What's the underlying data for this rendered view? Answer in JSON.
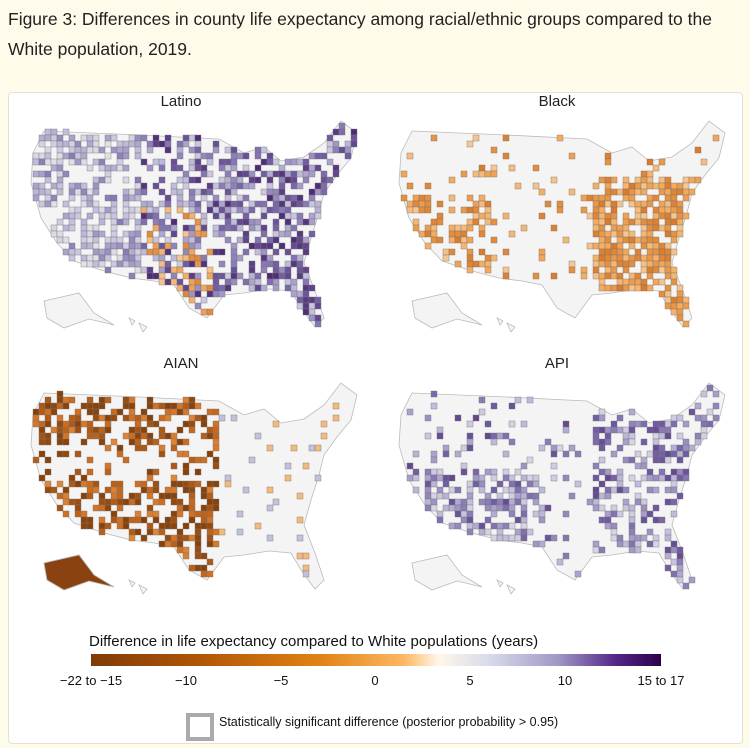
{
  "title": "Figure 3: Differences in county life expectancy among racial/ethnic groups compared to the White population, 2019.",
  "chart_data": {
    "type": "heatmap",
    "title": "Differences in county life expectancy among racial/ethnic groups compared to the White population, 2019",
    "panels": [
      {
        "name": "Latino",
        "pattern": "mostly positive (purple), strongest in East and Midwest; some negative in Southwest/Plains"
      },
      {
        "name": "Black",
        "pattern": "mostly negative (orange) across South and East"
      },
      {
        "name": "AIAN",
        "pattern": "strongly negative (brown/orange) in West, Plains and Alaska"
      },
      {
        "name": "API",
        "pattern": "positive (purple) broadly, strongest in Southwest and East"
      }
    ],
    "legend": {
      "title": "Difference in life expectancy compared to White populations (years)",
      "range": [
        -22,
        17
      ],
      "tick_labels": [
        "−22 to −15",
        "−10",
        "−5",
        "0",
        "5",
        "10",
        "15 to 17"
      ],
      "colors": {
        "negative": "#7f3b08",
        "zero": "#f7f7f7",
        "positive": "#2d004b"
      },
      "significance_note": "Statistically significant difference (posterior probability > 0.95)"
    }
  }
}
